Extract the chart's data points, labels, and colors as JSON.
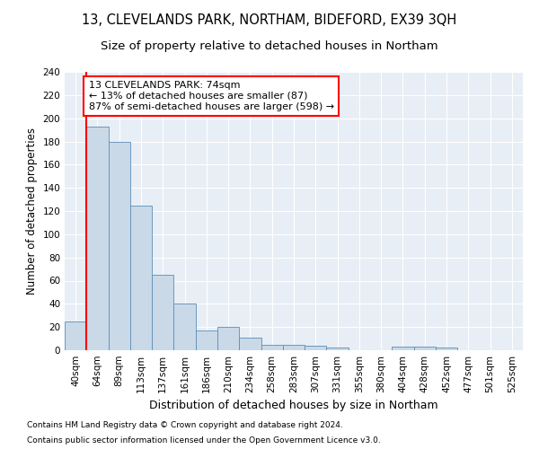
{
  "title1": "13, CLEVELANDS PARK, NORTHAM, BIDEFORD, EX39 3QH",
  "title2": "Size of property relative to detached houses in Northam",
  "xlabel": "Distribution of detached houses by size in Northam",
  "ylabel": "Number of detached properties",
  "footer1": "Contains HM Land Registry data © Crown copyright and database right 2024.",
  "footer2": "Contains public sector information licensed under the Open Government Licence v3.0.",
  "bin_labels": [
    "40sqm",
    "64sqm",
    "89sqm",
    "113sqm",
    "137sqm",
    "161sqm",
    "186sqm",
    "210sqm",
    "234sqm",
    "258sqm",
    "283sqm",
    "307sqm",
    "331sqm",
    "355sqm",
    "380sqm",
    "404sqm",
    "428sqm",
    "452sqm",
    "477sqm",
    "501sqm",
    "525sqm"
  ],
  "bar_values": [
    25,
    193,
    180,
    125,
    65,
    40,
    17,
    20,
    11,
    5,
    5,
    4,
    2,
    0,
    0,
    3,
    3,
    2,
    0,
    0,
    0
  ],
  "bar_color": "#c9d9e8",
  "bar_edge_color": "#5b8db8",
  "vline_color": "red",
  "vline_x_index": 1,
  "annotation_text": "13 CLEVELANDS PARK: 74sqm\n← 13% of detached houses are smaller (87)\n87% of semi-detached houses are larger (598) →",
  "annotation_box_color": "white",
  "annotation_box_edge": "red",
  "ylim": [
    0,
    240
  ],
  "yticks": [
    0,
    20,
    40,
    60,
    80,
    100,
    120,
    140,
    160,
    180,
    200,
    220,
    240
  ],
  "background_color": "#e8eef5",
  "grid_color": "white",
  "title1_fontsize": 10.5,
  "title2_fontsize": 9.5,
  "xlabel_fontsize": 9,
  "ylabel_fontsize": 8.5,
  "tick_fontsize": 7.5,
  "annotation_fontsize": 8,
  "footer_fontsize": 6.5
}
